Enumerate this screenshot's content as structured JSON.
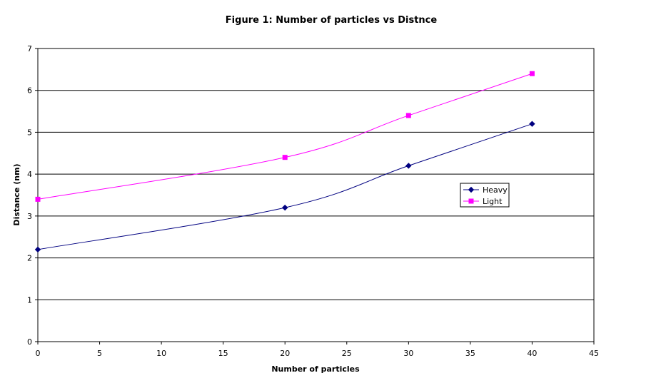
{
  "chart_data": {
    "type": "line",
    "title": "Figure 1: Number of particles vs Distnce",
    "xlabel": "Number of particles",
    "ylabel": "Distance (nm)",
    "xlim": [
      0,
      45
    ],
    "ylim": [
      0,
      7
    ],
    "xticks": [
      0,
      5,
      10,
      15,
      20,
      25,
      30,
      35,
      40,
      45
    ],
    "yticks": [
      0,
      1,
      2,
      3,
      4,
      5,
      6,
      7
    ],
    "grid": "horizontal",
    "legend": "right",
    "series": [
      {
        "name": "Heavy",
        "color": "#000080",
        "marker": "diamond",
        "x": [
          0,
          20,
          30,
          40
        ],
        "y": [
          2.2,
          3.2,
          4.2,
          5.2
        ]
      },
      {
        "name": "Light",
        "color": "#FF00FF",
        "marker": "square",
        "x": [
          0,
          20,
          30,
          40
        ],
        "y": [
          3.4,
          4.4,
          5.4,
          6.4
        ]
      }
    ]
  }
}
